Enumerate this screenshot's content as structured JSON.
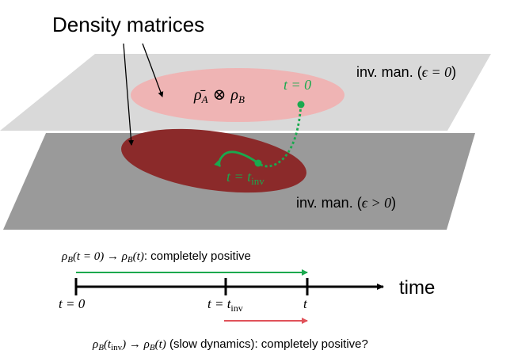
{
  "heading": "Density matrices",
  "manifold_top": {
    "label_prefix": "inv. man. (",
    "label_math": "ϵ = 0",
    "label_suffix": ")",
    "state_label": "ρ̄",
    "state_label_parts": {
      "rho_bar_sub": "A",
      "otimes": "⊗",
      "rho_sub": "B"
    },
    "point_label": "t = 0"
  },
  "manifold_bottom": {
    "label_prefix": "inv. man. (",
    "label_math": "ϵ > 0",
    "label_suffix": ")",
    "point_label_t": "t = t",
    "point_label_sub": "inv"
  },
  "top_map": {
    "rho": "ρ",
    "sub": "B",
    "arg": "(t = 0) → ",
    "arg2": "(t)",
    "text": ": completely positive"
  },
  "timeline": {
    "axis_label": "time",
    "tick_0": "t = 0",
    "tick_inv_main": "t = t",
    "tick_inv_sub": "inv",
    "tick_t": "t"
  },
  "bottom_map": {
    "rho": "ρ",
    "sub": "B",
    "arg_open": "(t",
    "arg_sub": "inv",
    "arg_close": ") → ",
    "arg2": "(t)",
    "text": " (slow dynamics): completely positive?"
  },
  "colors": {
    "top_plane": "#d9d9d9",
    "bottom_plane": "#9a9a9a",
    "light_ellipse": "#efb4b4",
    "dark_ellipse": "#8b2a2a",
    "trajectory": "#1aa94e",
    "green_glow": "#9ee6b0",
    "red_glow": "#f2a8a8",
    "red_arrow": "#e0525a"
  }
}
